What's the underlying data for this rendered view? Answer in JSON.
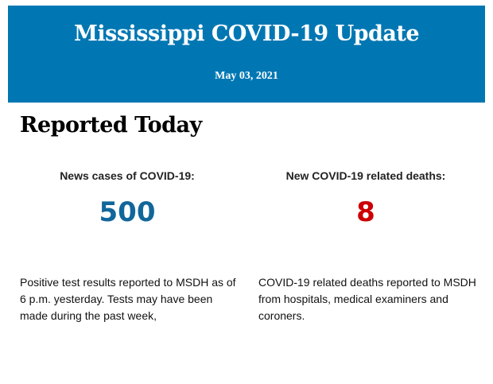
{
  "header": {
    "title": "Mississippi COVID-19 Update",
    "date": "May 03, 2021",
    "background_color": "#0077b3"
  },
  "section_title": "Reported Today",
  "cases": {
    "label": "News cases of COVID-19:",
    "value": "500",
    "color": "#11679a",
    "description": "Positive test results reported to MSDH as of 6 p.m. yesterday. Tests may have been made during the past week,"
  },
  "deaths": {
    "label": "New COVID-19 related deaths:",
    "value": "8",
    "color": "#cc0000",
    "description": "COVID-19 related deaths reported to MSDH from hospitals, medical examiners and coroners."
  }
}
